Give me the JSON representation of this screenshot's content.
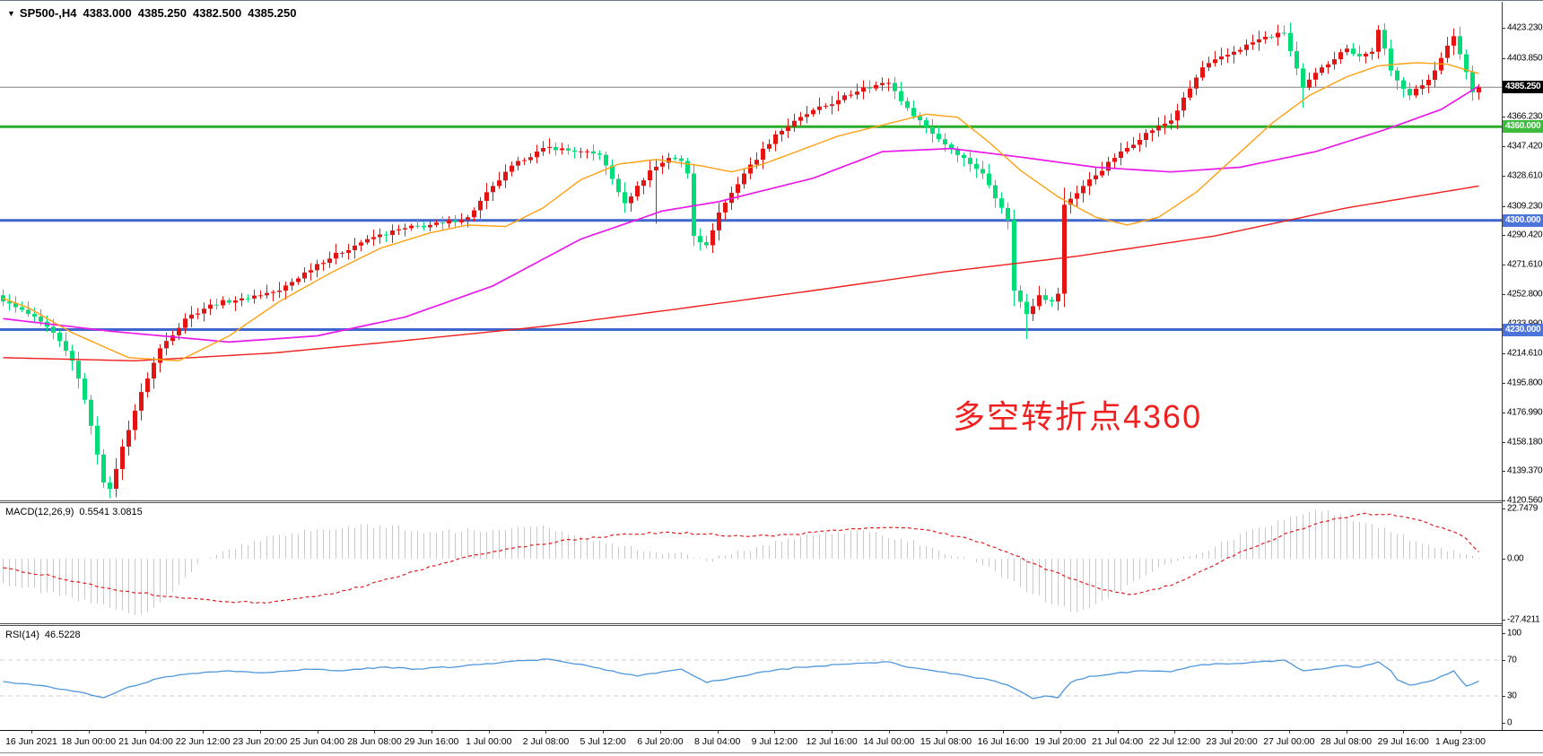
{
  "title": {
    "dropdown_icon": "▼",
    "symbol": "SP500-,H4",
    "open": "4383.000",
    "high": "4385.250",
    "low": "4382.500",
    "close": "4385.250"
  },
  "annotation": {
    "text": "多空转折点4360",
    "color": "#f02020"
  },
  "price_axis": {
    "ticks": [
      "4423.230",
      "4403.850",
      "4366.230",
      "4347.420",
      "4328.610",
      "4309.230",
      "4290.420",
      "4271.610",
      "4252.800",
      "4233.990",
      "4214.610",
      "4195.800",
      "4176.990",
      "4158.180",
      "4139.370",
      "4120.560"
    ],
    "range": [
      4120.56,
      4440.0
    ]
  },
  "price_tags": [
    {
      "label": "4385.250",
      "price": 4385.25,
      "bg": "#000000"
    },
    {
      "label": "4360.000",
      "price": 4360.0,
      "bg": "#3cbb3c"
    },
    {
      "label": "4300.000",
      "price": 4300.0,
      "bg": "#4d74da"
    },
    {
      "label": "4230.000",
      "price": 4230.0,
      "bg": "#4d74da"
    }
  ],
  "hlines": [
    {
      "name": "current-price-line",
      "price": 4385.25,
      "color": "#808080",
      "width": 1
    },
    {
      "name": "green-level-4360",
      "price": 4360.0,
      "color": "#2aab2a",
      "width": 3
    },
    {
      "name": "blue-level-4300",
      "price": 4300.0,
      "color": "#3f66cc",
      "width": 3
    },
    {
      "name": "blue-level-4230",
      "price": 4230.0,
      "color": "#3f66cc",
      "width": 3
    }
  ],
  "chart_data": {
    "type": "candlestick",
    "symbol": "SP500-",
    "timeframe": "H4",
    "bull_color": "#e31412",
    "bear_color": "#00dc78",
    "candle_count": 236,
    "price_range": [
      4120.56,
      4440.0
    ],
    "close_waypoints": [
      [
        0,
        4248
      ],
      [
        4,
        4240
      ],
      [
        8,
        4228
      ],
      [
        11,
        4210
      ],
      [
        13,
        4185
      ],
      [
        15,
        4150
      ],
      [
        16,
        4132
      ],
      [
        17,
        4128
      ],
      [
        19,
        4155
      ],
      [
        22,
        4190
      ],
      [
        25,
        4218
      ],
      [
        29,
        4237
      ],
      [
        33,
        4246
      ],
      [
        38,
        4250
      ],
      [
        44,
        4255
      ],
      [
        50,
        4272
      ],
      [
        58,
        4288
      ],
      [
        64,
        4295
      ],
      [
        70,
        4298
      ],
      [
        74,
        4302
      ],
      [
        78,
        4322
      ],
      [
        82,
        4338
      ],
      [
        87,
        4347
      ],
      [
        91,
        4344
      ],
      [
        95,
        4342
      ],
      [
        99,
        4311
      ],
      [
        103,
        4332
      ],
      [
        106,
        4340
      ],
      [
        108,
        4338
      ],
      [
        109,
        4330
      ],
      [
        110,
        4290
      ],
      [
        112,
        4284
      ],
      [
        114,
        4305
      ],
      [
        118,
        4330
      ],
      [
        123,
        4355
      ],
      [
        128,
        4368
      ],
      [
        133,
        4377
      ],
      [
        137,
        4385
      ],
      [
        141,
        4388
      ],
      [
        144,
        4372
      ],
      [
        149,
        4352
      ],
      [
        153,
        4340
      ],
      [
        156,
        4330
      ],
      [
        159,
        4308
      ],
      [
        160,
        4300
      ],
      [
        161,
        4255
      ],
      [
        163,
        4240
      ],
      [
        165,
        4252
      ],
      [
        167,
        4248
      ],
      [
        168,
        4253
      ],
      [
        169,
        4310
      ],
      [
        172,
        4322
      ],
      [
        177,
        4340
      ],
      [
        182,
        4356
      ],
      [
        186,
        4364
      ],
      [
        191,
        4398
      ],
      [
        196,
        4408
      ],
      [
        200,
        4416
      ],
      [
        204,
        4420
      ],
      [
        207,
        4385
      ],
      [
        210,
        4398
      ],
      [
        214,
        4410
      ],
      [
        216,
        4405
      ],
      [
        218,
        4408
      ],
      [
        219,
        4422
      ],
      [
        221,
        4396
      ],
      [
        224,
        4380
      ],
      [
        227,
        4390
      ],
      [
        229,
        4404
      ],
      [
        231,
        4418
      ],
      [
        233,
        4395
      ],
      [
        234,
        4382
      ],
      [
        235,
        4385.25
      ]
    ],
    "wick_overrides": {
      "17": {
        "low": 4122
      },
      "104": {
        "low": 4298
      },
      "112": {
        "low": 4282
      },
      "163": {
        "low": 4224
      },
      "207": {
        "low": 4372
      },
      "219": {
        "high": 4425
      },
      "231": {
        "high": 4423
      }
    },
    "moving_averages": [
      {
        "name": "ma-fast-orange",
        "color": "#ffa013",
        "width": 1.4,
        "points": [
          [
            0,
            4250
          ],
          [
            4,
            4244
          ],
          [
            11,
            4228
          ],
          [
            20,
            4212
          ],
          [
            28,
            4210
          ],
          [
            36,
            4226
          ],
          [
            44,
            4248
          ],
          [
            52,
            4266
          ],
          [
            60,
            4282
          ],
          [
            68,
            4292
          ],
          [
            74,
            4297
          ],
          [
            80,
            4296
          ],
          [
            86,
            4308
          ],
          [
            92,
            4326
          ],
          [
            98,
            4336
          ],
          [
            104,
            4339
          ],
          [
            111,
            4335
          ],
          [
            116,
            4331
          ],
          [
            121,
            4336
          ],
          [
            127,
            4345
          ],
          [
            133,
            4354
          ],
          [
            141,
            4362
          ],
          [
            147,
            4368
          ],
          [
            152,
            4366
          ],
          [
            157,
            4350
          ],
          [
            162,
            4332
          ],
          [
            168,
            4315
          ],
          [
            174,
            4302
          ],
          [
            179,
            4297
          ],
          [
            184,
            4302
          ],
          [
            190,
            4318
          ],
          [
            196,
            4340
          ],
          [
            202,
            4362
          ],
          [
            208,
            4380
          ],
          [
            214,
            4392
          ],
          [
            219,
            4399
          ],
          [
            225,
            4401
          ],
          [
            230,
            4400
          ],
          [
            235,
            4394
          ]
        ]
      },
      {
        "name": "ma-mid-magenta",
        "color": "#ea1bea",
        "width": 1.7,
        "points": [
          [
            0,
            4237
          ],
          [
            17,
            4229
          ],
          [
            36,
            4222
          ],
          [
            50,
            4226
          ],
          [
            64,
            4238
          ],
          [
            78,
            4258
          ],
          [
            92,
            4288
          ],
          [
            105,
            4306
          ],
          [
            114,
            4312
          ],
          [
            122,
            4320
          ],
          [
            129,
            4327
          ],
          [
            140,
            4344
          ],
          [
            151,
            4346
          ],
          [
            163,
            4340
          ],
          [
            174,
            4334
          ],
          [
            186,
            4331
          ],
          [
            197,
            4334
          ],
          [
            209,
            4344
          ],
          [
            220,
            4358
          ],
          [
            229,
            4371
          ],
          [
            235,
            4386
          ]
        ]
      },
      {
        "name": "ma-slow-red",
        "color": "#f02020",
        "width": 1.4,
        "points": [
          [
            0,
            4212
          ],
          [
            21,
            4210
          ],
          [
            43,
            4215
          ],
          [
            64,
            4223
          ],
          [
            86,
            4232
          ],
          [
            107,
            4243
          ],
          [
            129,
            4255
          ],
          [
            150,
            4267
          ],
          [
            171,
            4277
          ],
          [
            193,
            4290
          ],
          [
            214,
            4308
          ],
          [
            229,
            4318
          ],
          [
            235,
            4322
          ]
        ]
      }
    ],
    "time_labels": [
      "16 Jun 2021",
      "18 Jun 00:00",
      "21 Jun 04:00",
      "22 Jun 12:00",
      "23 Jun 20:00",
      "25 Jun 04:00",
      "28 Jun 08:00",
      "29 Jun 16:00",
      "1 Jul 00:00",
      "2 Jul 08:00",
      "5 Jul 12:00",
      "6 Jul 20:00",
      "8 Jul 04:00",
      "9 Jul 12:00",
      "12 Jul 16:00",
      "14 Jul 00:00",
      "15 Jul 08:00",
      "16 Jul 16:00",
      "19 Jul 20:00",
      "21 Jul 04:00",
      "22 Jul 12:00",
      "23 Jul 20:00",
      "27 Jul 00:00",
      "28 Jul 08:00",
      "29 Jul 16:00",
      "1 Aug 23:00"
    ],
    "macd": {
      "label": "MACD(12,26,9)",
      "values": "0.5541 3.0815",
      "range": [
        -29,
        25
      ],
      "axis_labels": [
        {
          "text": "22.7479",
          "value": 22.7479
        },
        {
          "text": "0.00",
          "value": 0
        },
        {
          "text": "-27.4211",
          "value": -27.4211
        }
      ],
      "histogram_color": "#c9c9c9",
      "signal_color": "#dd2020",
      "histogram_waypoints": [
        [
          0,
          -11
        ],
        [
          7,
          -15
        ],
        [
          14,
          -20
        ],
        [
          22,
          -25
        ],
        [
          27,
          -15
        ],
        [
          30,
          -6
        ],
        [
          32,
          0
        ],
        [
          40,
          8
        ],
        [
          50,
          13
        ],
        [
          60,
          15
        ],
        [
          68,
          12
        ],
        [
          78,
          13
        ],
        [
          87,
          14
        ],
        [
          92,
          10
        ],
        [
          97,
          7
        ],
        [
          101,
          4
        ],
        [
          105,
          2
        ],
        [
          108,
          3
        ],
        [
          112,
          -1
        ],
        [
          116,
          2
        ],
        [
          121,
          6
        ],
        [
          127,
          10
        ],
        [
          133,
          12
        ],
        [
          138,
          12
        ],
        [
          143,
          9
        ],
        [
          148,
          5
        ],
        [
          152,
          1
        ],
        [
          156,
          -3
        ],
        [
          160,
          -9
        ],
        [
          164,
          -16
        ],
        [
          168,
          -21
        ],
        [
          171,
          -24
        ],
        [
          175,
          -19
        ],
        [
          179,
          -12
        ],
        [
          183,
          -6
        ],
        [
          187,
          -1
        ],
        [
          190,
          2
        ],
        [
          195,
          8
        ],
        [
          200,
          14
        ],
        [
          205,
          19
        ],
        [
          209,
          22
        ],
        [
          213,
          20
        ],
        [
          217,
          16
        ],
        [
          221,
          12
        ],
        [
          225,
          8
        ],
        [
          228,
          5
        ],
        [
          231,
          4
        ],
        [
          233,
          2
        ],
        [
          235,
          0.55
        ]
      ],
      "signal_waypoints": [
        [
          0,
          -4
        ],
        [
          8,
          -8
        ],
        [
          16,
          -13
        ],
        [
          26,
          -17
        ],
        [
          34,
          -19
        ],
        [
          42,
          -20
        ],
        [
          50,
          -17
        ],
        [
          58,
          -12
        ],
        [
          64,
          -7
        ],
        [
          70,
          -2
        ],
        [
          76,
          2
        ],
        [
          84,
          6
        ],
        [
          92,
          9
        ],
        [
          100,
          11
        ],
        [
          106,
          12
        ],
        [
          112,
          11
        ],
        [
          118,
          10
        ],
        [
          126,
          11
        ],
        [
          134,
          13
        ],
        [
          141,
          14
        ],
        [
          147,
          13
        ],
        [
          152,
          10
        ],
        [
          158,
          5
        ],
        [
          164,
          -2
        ],
        [
          170,
          -9
        ],
        [
          175,
          -14
        ],
        [
          180,
          -16
        ],
        [
          186,
          -12
        ],
        [
          192,
          -4
        ],
        [
          198,
          4
        ],
        [
          205,
          12
        ],
        [
          211,
          17
        ],
        [
          216,
          20
        ],
        [
          221,
          20
        ],
        [
          226,
          17
        ],
        [
          230,
          13
        ],
        [
          233,
          9
        ],
        [
          235,
          3.08
        ]
      ]
    },
    "rsi": {
      "label": "RSI(14)",
      "value": "46.5228",
      "range": [
        0,
        100
      ],
      "levels": [
        70,
        30
      ],
      "axis_labels": [
        {
          "text": "100",
          "value": 100
        },
        {
          "text": "70",
          "value": 70
        },
        {
          "text": "30",
          "value": 30
        },
        {
          "text": "0",
          "value": 0
        }
      ],
      "line_color": "#4e96dc",
      "level_color": "#cccccc",
      "waypoints": [
        [
          0,
          46
        ],
        [
          5,
          42
        ],
        [
          10,
          37
        ],
        [
          14,
          31
        ],
        [
          16,
          28
        ],
        [
          20,
          40
        ],
        [
          25,
          50
        ],
        [
          30,
          55
        ],
        [
          36,
          58
        ],
        [
          42,
          56
        ],
        [
          48,
          60
        ],
        [
          54,
          58
        ],
        [
          60,
          62
        ],
        [
          66,
          60
        ],
        [
          73,
          63
        ],
        [
          80,
          68
        ],
        [
          87,
          71
        ],
        [
          90,
          67
        ],
        [
          94,
          62
        ],
        [
          97,
          58
        ],
        [
          101,
          52
        ],
        [
          105,
          57
        ],
        [
          108,
          60
        ],
        [
          112,
          45
        ],
        [
          116,
          50
        ],
        [
          121,
          57
        ],
        [
          127,
          62
        ],
        [
          133,
          65
        ],
        [
          138,
          67
        ],
        [
          141,
          68
        ],
        [
          144,
          62
        ],
        [
          149,
          57
        ],
        [
          153,
          53
        ],
        [
          157,
          48
        ],
        [
          160,
          42
        ],
        [
          162,
          35
        ],
        [
          164,
          27
        ],
        [
          166,
          30
        ],
        [
          168,
          28
        ],
        [
          170,
          45
        ],
        [
          173,
          52
        ],
        [
          177,
          55
        ],
        [
          182,
          58
        ],
        [
          186,
          57
        ],
        [
          191,
          65
        ],
        [
          196,
          66
        ],
        [
          200,
          68
        ],
        [
          204,
          70
        ],
        [
          207,
          58
        ],
        [
          210,
          60
        ],
        [
          214,
          64
        ],
        [
          216,
          62
        ],
        [
          219,
          68
        ],
        [
          221,
          58
        ],
        [
          222,
          48
        ],
        [
          224,
          42
        ],
        [
          227,
          46
        ],
        [
          229,
          52
        ],
        [
          231,
          58
        ],
        [
          233,
          41
        ],
        [
          235,
          46.52
        ]
      ]
    }
  }
}
